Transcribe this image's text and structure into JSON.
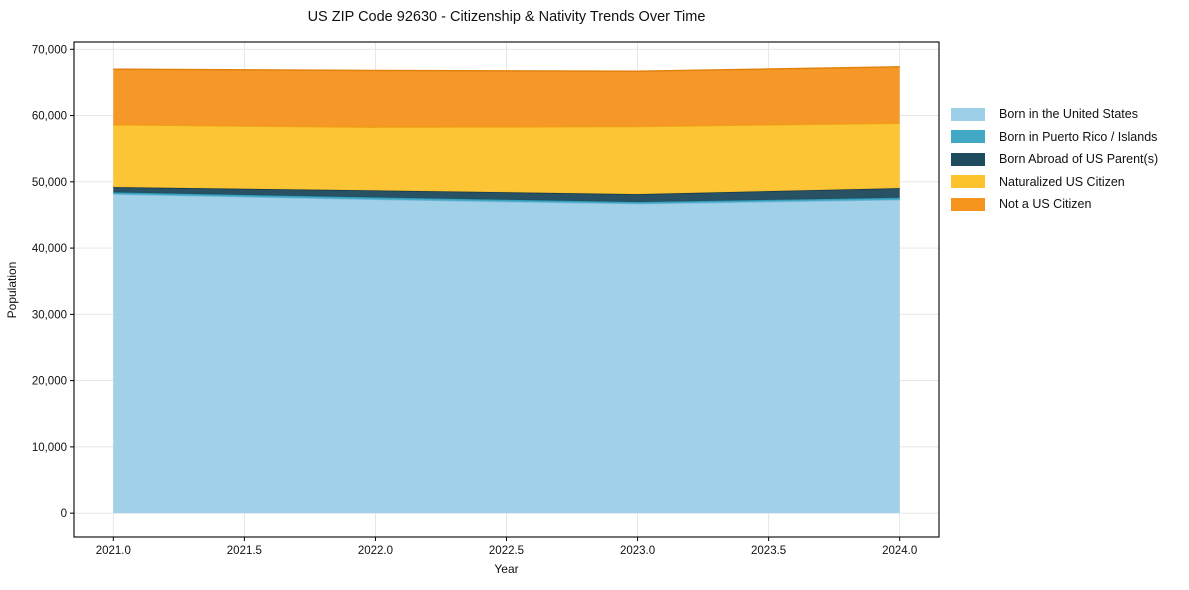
{
  "window": {
    "background": "#ffffff"
  },
  "chart_data": {
    "type": "area",
    "stacked": true,
    "title": "US ZIP Code 92630 - Citizenship & Nativity Trends Over Time",
    "xlabel": "Year",
    "ylabel": "Population",
    "x": [
      2021,
      2022,
      2023,
      2024
    ],
    "series": [
      {
        "name": "Born in the United States",
        "fill": "#9ccfe8",
        "edge": "#7eb9d9",
        "values": [
          48150,
          47350,
          46700,
          47300
        ]
      },
      {
        "name": "Born in Puerto Rico / Islands",
        "fill": "#41a9c6",
        "edge": "#2e97b2",
        "values": [
          250,
          300,
          250,
          300
        ]
      },
      {
        "name": "Born Abroad of US Parent(s)",
        "fill": "#1f4b5e",
        "edge": "#16394a",
        "values": [
          800,
          1050,
          1200,
          1450
        ]
      },
      {
        "name": "Naturalized US Citizen",
        "fill": "#fcc32d",
        "edge": "#efa714",
        "values": [
          9400,
          9550,
          10200,
          9800
        ]
      },
      {
        "name": "Not a US Citizen",
        "fill": "#f5941f",
        "edge": "#e2820e",
        "values": [
          8400,
          8550,
          8350,
          8500
        ]
      }
    ],
    "x_tick_values": [
      2021.0,
      2021.5,
      2022.0,
      2022.5,
      2023.0,
      2023.5,
      2024.0
    ],
    "x_tick_labels": [
      "2021.0",
      "2021.5",
      "2022.0",
      "2022.5",
      "2023.0",
      "2023.5",
      "2024.0"
    ],
    "y_tick_values": [
      0,
      10000,
      20000,
      30000,
      40000,
      50000,
      60000,
      70000
    ],
    "y_tick_labels": [
      "0",
      "10,000",
      "20,000",
      "30,000",
      "40,000",
      "50,000",
      "60,000",
      "70,000"
    ],
    "xlim": [
      2020.85,
      2024.15
    ],
    "ylim": [
      -3600,
      71100
    ],
    "grid": true,
    "grid_color": "#e4e4e4",
    "axis_color": "#000000",
    "text_color": "#111111",
    "legend_position": "right"
  }
}
